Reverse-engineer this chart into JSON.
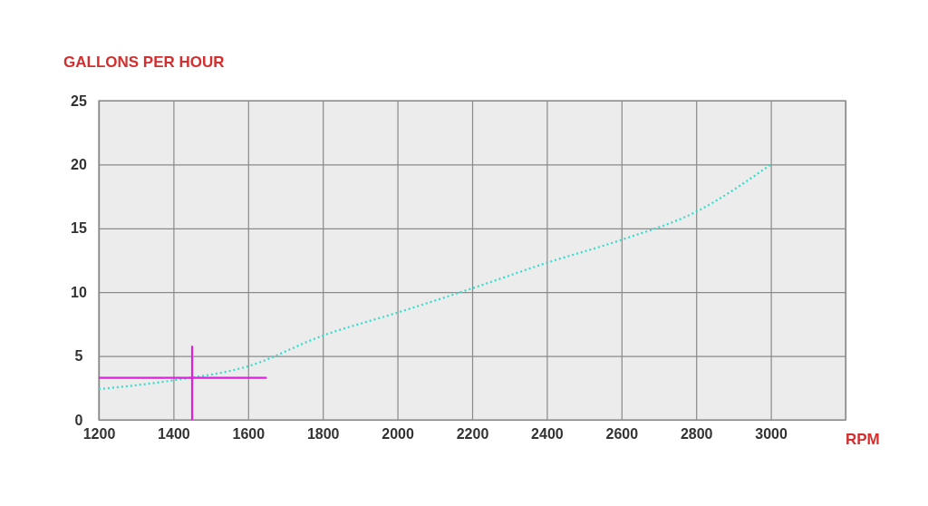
{
  "chart_data": {
    "type": "line",
    "ylabel": "GALLONS PER HOUR",
    "xlabel": "RPM",
    "xlim": [
      1200,
      3200
    ],
    "xticks": [
      1200,
      1400,
      1600,
      1800,
      2000,
      2200,
      2400,
      2600,
      2800,
      3000,
      {
        "value": 3200,
        "label": null
      }
    ],
    "ylim": [
      0,
      25
    ],
    "yticks": [
      0,
      5,
      10,
      15,
      20,
      25
    ],
    "grid": true,
    "series": [
      {
        "color": "#33dccc",
        "line_style": "dotted",
        "x": [
          1200,
          1400,
          1600,
          1800,
          2000,
          2200,
          2400,
          2600,
          2800,
          3000
        ],
        "values": [
          2.4,
          3.1,
          4.2,
          6.6,
          8.4,
          10.3,
          12.3,
          14.1,
          16.3,
          20
        ]
      },
      {
        "color": "#e020e0",
        "line_style": "solid",
        "x": [
          1450,
          1450
        ],
        "values": [
          0,
          5.8
        ]
      },
      {
        "color": "#e020e0",
        "line_style": "solid",
        "x": [
          1200,
          1650
        ],
        "values": [
          3.3,
          3.3
        ]
      }
    ]
  }
}
